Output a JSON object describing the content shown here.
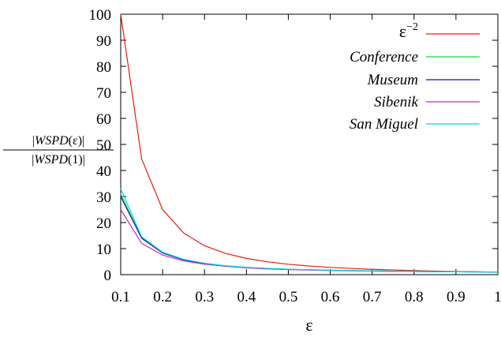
{
  "chart_data": {
    "type": "line",
    "xlabel": "ε",
    "ylabel": {
      "numerator_prefix": "|",
      "numerator_italic": "WSPD",
      "numerator_suffix": "(ε)|",
      "denominator_prefix": "|",
      "denominator_italic": "WSPD",
      "denominator_suffix": "(1)|"
    },
    "xlim": [
      0.1,
      1
    ],
    "ylim": [
      0,
      100
    ],
    "xticks": [
      0.1,
      0.2,
      0.3,
      0.4,
      0.5,
      0.6,
      0.7,
      0.8,
      0.9,
      1
    ],
    "xtick_labels": [
      "0.1",
      "0.2",
      "0.3",
      "0.4",
      "0.5",
      "0.6",
      "0.7",
      "0.8",
      "0.9",
      "1"
    ],
    "yticks": [
      0,
      10,
      20,
      30,
      40,
      50,
      60,
      70,
      80,
      90,
      100
    ],
    "ytick_labels": [
      "0",
      "10",
      "20",
      "30",
      "40",
      "50",
      "60",
      "70",
      "80",
      "90",
      "100"
    ],
    "grid": false,
    "legend_position": "top-right",
    "legend_reference_base": "ε",
    "legend_reference_exponent": "−2",
    "series": [
      {
        "key": "reference",
        "color": "#e51e10",
        "x": [
          0.1,
          0.15,
          0.2,
          0.25,
          0.3,
          0.35,
          0.4,
          0.45,
          0.5,
          0.55,
          0.6,
          0.65,
          0.7,
          0.75,
          0.8,
          0.85,
          0.9,
          0.95,
          1
        ],
        "values": [
          100,
          44.4,
          25,
          16,
          11.1,
          8.16,
          6.25,
          4.94,
          4,
          3.31,
          2.78,
          2.37,
          2.04,
          1.78,
          1.56,
          1.38,
          1.23,
          1.11,
          1
        ]
      },
      {
        "name": "Conference",
        "color": "#00e33b",
        "x": [
          0.1,
          0.15,
          0.2,
          0.25,
          0.3,
          0.35,
          0.4,
          0.45,
          0.5,
          0.6,
          0.7,
          0.8,
          0.9,
          1
        ],
        "values": [
          31,
          14,
          8.5,
          5.8,
          4.3,
          3.4,
          2.8,
          2.4,
          2.1,
          1.7,
          1.4,
          1.25,
          1.1,
          1
        ]
      },
      {
        "name": "Museum",
        "color": "#0b1fa0",
        "x": [
          0.1,
          0.15,
          0.2,
          0.25,
          0.3,
          0.35,
          0.4,
          0.45,
          0.5,
          0.6,
          0.7,
          0.8,
          0.9,
          1
        ],
        "values": [
          30,
          14,
          8.3,
          5.7,
          4.2,
          3.3,
          2.7,
          2.3,
          2.0,
          1.65,
          1.4,
          1.2,
          1.1,
          1
        ]
      },
      {
        "name": "Sibenik",
        "color": "#c52bc5",
        "x": [
          0.1,
          0.15,
          0.2,
          0.25,
          0.3,
          0.35,
          0.4,
          0.45,
          0.5,
          0.6,
          0.7,
          0.8,
          0.9,
          1
        ],
        "values": [
          25,
          12,
          7.5,
          5.3,
          4.0,
          3.2,
          2.6,
          2.2,
          1.95,
          1.6,
          1.35,
          1.2,
          1.1,
          1
        ]
      },
      {
        "name": "San Miguel",
        "color": "#00d7e3",
        "x": [
          0.1,
          0.15,
          0.2,
          0.25,
          0.3,
          0.35,
          0.4,
          0.45,
          0.5,
          0.6,
          0.7,
          0.8,
          0.9,
          1
        ],
        "values": [
          33,
          14.5,
          8.6,
          5.9,
          4.4,
          3.4,
          2.8,
          2.4,
          2.1,
          1.7,
          1.45,
          1.25,
          1.1,
          1
        ]
      }
    ]
  }
}
